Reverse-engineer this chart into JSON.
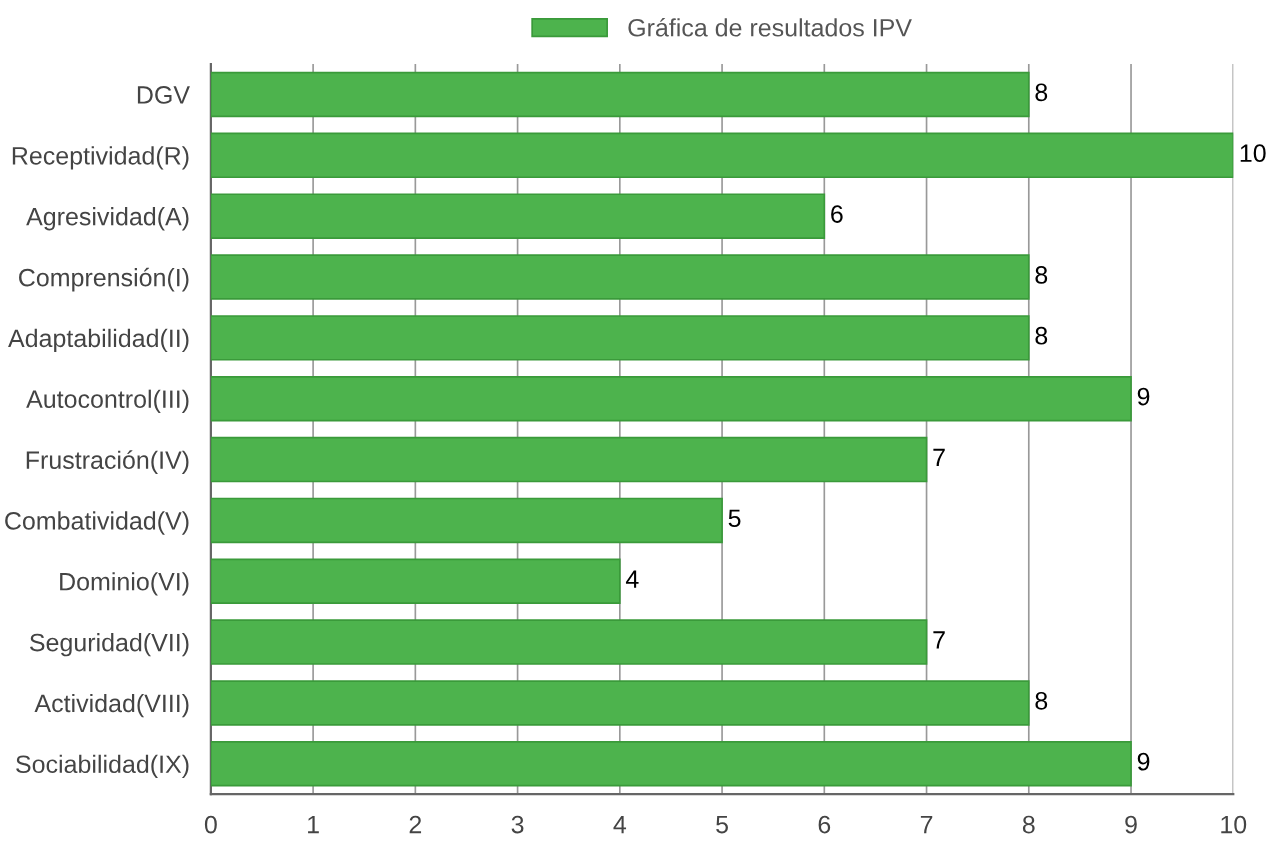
{
  "chart_data": {
    "type": "bar",
    "orientation": "horizontal",
    "categories": [
      "DGV",
      "Receptividad(R)",
      "Agresividad(A)",
      "Comprensión(I)",
      "Adaptabilidad(II)",
      "Autocontrol(III)",
      "Frustración(IV)",
      "Combatividad(V)",
      "Dominio(VI)",
      "Seguridad(VII)",
      "Actividad(VIII)",
      "Sociabilidad(IX)"
    ],
    "series": [
      {
        "name": "Gráfica de resultados IPV",
        "color": "#4db34d",
        "values": [
          8,
          10,
          6,
          8,
          8,
          9,
          7,
          5,
          4,
          7,
          8,
          9
        ]
      }
    ],
    "xlim": [
      0,
      10
    ],
    "xticks": [
      0,
      1,
      2,
      3,
      4,
      5,
      6,
      7,
      8,
      9,
      10
    ],
    "grid": "x",
    "legend": "top",
    "data_labels": true
  }
}
